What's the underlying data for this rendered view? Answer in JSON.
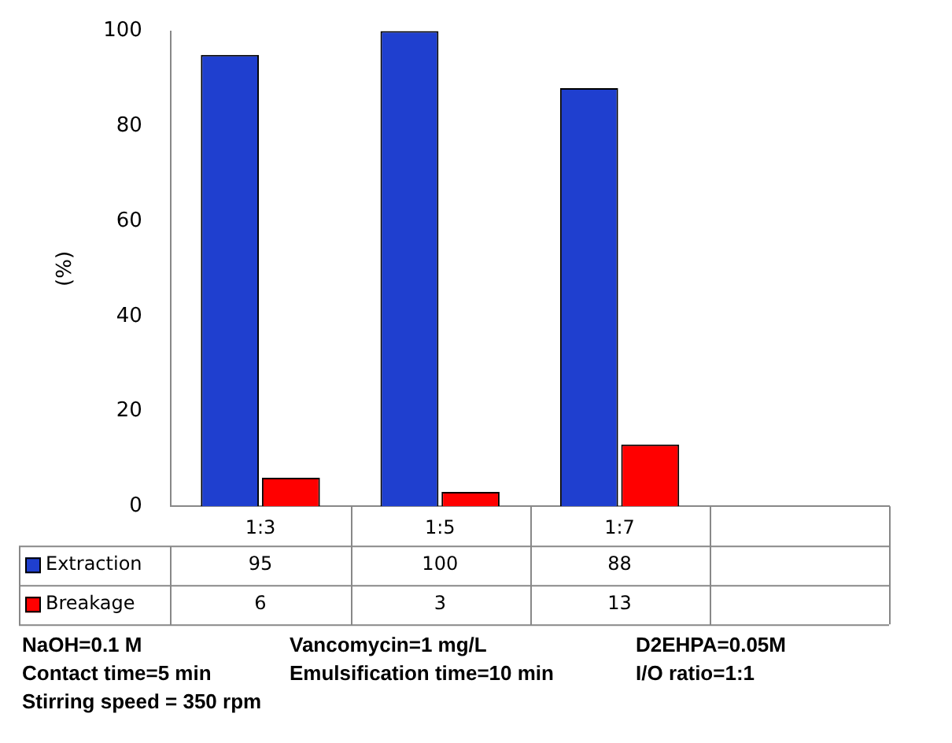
{
  "chart_data": {
    "type": "bar",
    "ylabel": "(%)",
    "categories": [
      "1:3",
      "1:5",
      "1:7",
      null
    ],
    "series": [
      {
        "name": "Extraction",
        "color": "#1f3fcf",
        "values": [
          95,
          100,
          88,
          null
        ]
      },
      {
        "name": "Breakage",
        "color": "#ff0000",
        "values": [
          6,
          3,
          13,
          null
        ]
      }
    ],
    "ylim": [
      0,
      100
    ],
    "yticks": [
      0,
      20,
      40,
      60,
      80,
      100
    ],
    "grid": false,
    "legend": "bottom",
    "data_labels": true,
    "annotations": [
      "NaOH=0.1 M",
      "Vancomycin=1 mg/L",
      "D2EHPA=0.05M",
      "Contact time=5 min",
      "Emulsification time=10 min",
      "I/O ratio=1:1",
      "Stirring speed = 350 rpm"
    ]
  }
}
